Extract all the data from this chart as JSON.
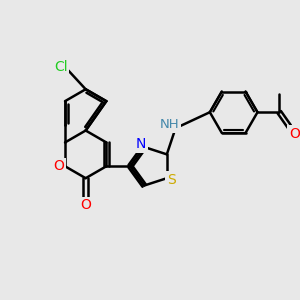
{
  "bg_color": "#e8e8e8",
  "bond_color": "#000000",
  "bond_width": 1.8,
  "atom_colors": {
    "N": "#0000ff",
    "O": "#ff0000",
    "S": "#ccaa00",
    "Cl": "#22cc22",
    "NH": "#4488aa",
    "C": "#000000"
  },
  "figsize": [
    3.0,
    3.0
  ],
  "dpi": 100
}
